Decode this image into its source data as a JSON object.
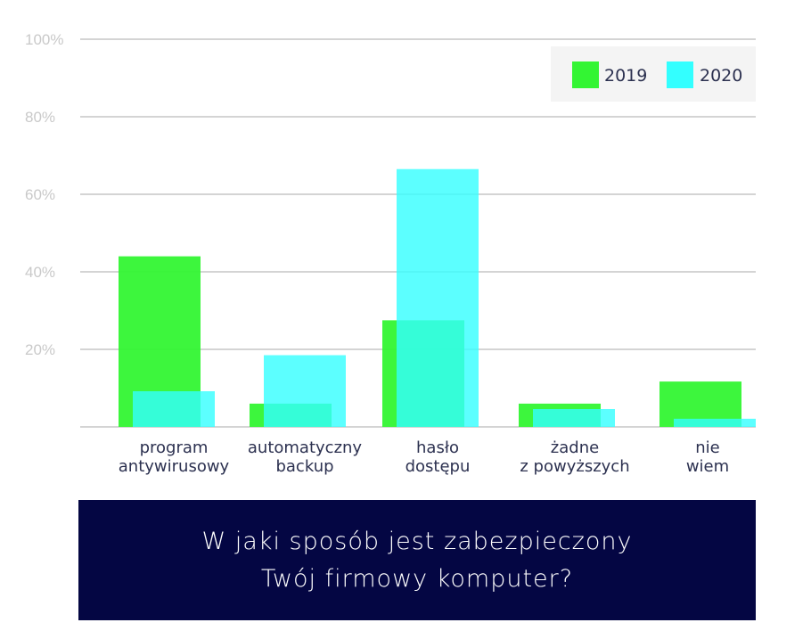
{
  "chart_data": {
    "type": "bar",
    "categories": [
      [
        "program",
        "antywirusowy"
      ],
      [
        "automatyczny",
        "backup"
      ],
      [
        "hasło",
        "dostępu"
      ],
      [
        "żadne",
        "z powyższych"
      ],
      [
        "nie",
        "wiem"
      ]
    ],
    "series": [
      {
        "name": "2019",
        "color": "#33f533",
        "values": [
          44,
          6,
          27.5,
          6,
          11.7
        ]
      },
      {
        "name": "2020",
        "color": "#33ffff",
        "values": [
          9.2,
          18.5,
          66.5,
          4.6,
          2.1
        ]
      }
    ],
    "yticks": [
      "100%",
      "80%",
      "60%",
      "40%",
      "20%"
    ],
    "ylim": [
      0,
      100
    ],
    "grid": true,
    "legend": "top-right",
    "title": [
      "W jaki sposób jest zabezpieczony",
      "Twój firmowy komputer?"
    ]
  }
}
